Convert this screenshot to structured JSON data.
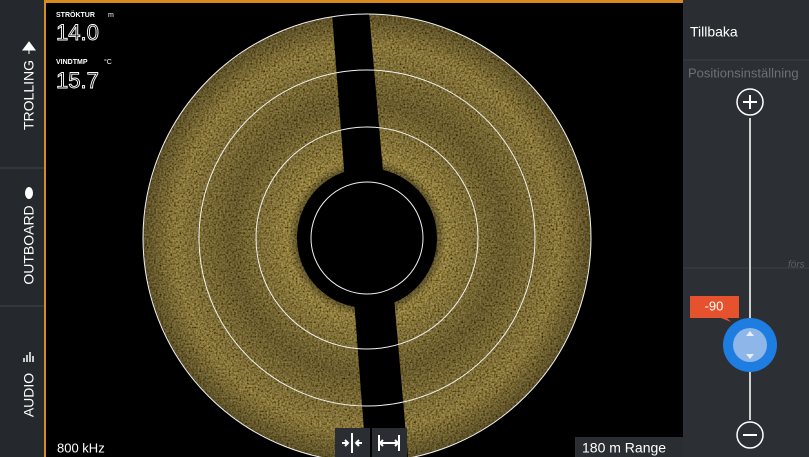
{
  "sidebar": {
    "tabs": [
      "TROLLING",
      "OUTBOARD",
      "AUDIO"
    ]
  },
  "readouts": [
    {
      "label": "STRÖKTUR",
      "unit": "m",
      "value": "14.0"
    },
    {
      "label": "VINDTMP",
      "unit": "°C",
      "value": "15.7"
    }
  ],
  "footer": {
    "frequency": "800 kHz",
    "range": "180 m Range"
  },
  "panel": {
    "back": "Tillbaka",
    "title": "Positionsinställning",
    "hint": "förs",
    "slider_value": "-90"
  }
}
